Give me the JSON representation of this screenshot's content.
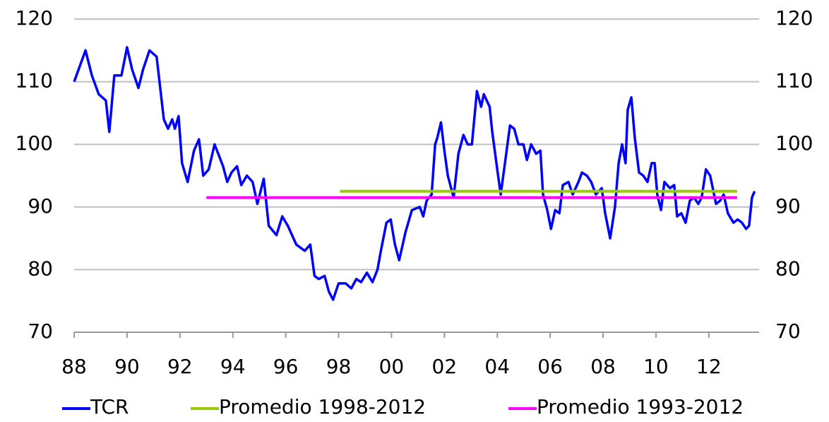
{
  "chart_data": {
    "type": "line",
    "xlim": [
      1988,
      2013.9
    ],
    "xticks": [
      {
        "value": 1988,
        "label": "88"
      },
      {
        "value": 1990,
        "label": "90"
      },
      {
        "value": 1992,
        "label": "92"
      },
      {
        "value": 1994,
        "label": "94"
      },
      {
        "value": 1996,
        "label": "96"
      },
      {
        "value": 1998,
        "label": "98"
      },
      {
        "value": 2000,
        "label": "00"
      },
      {
        "value": 2002,
        "label": "02"
      },
      {
        "value": 2004,
        "label": "04"
      },
      {
        "value": 2006,
        "label": "06"
      },
      {
        "value": 2008,
        "label": "08"
      },
      {
        "value": 2010,
        "label": "10"
      },
      {
        "value": 2012,
        "label": "12"
      }
    ],
    "ylim": [
      70,
      120
    ],
    "yticks": [
      70,
      80,
      90,
      100,
      110,
      120
    ],
    "y2lim": [
      70,
      120
    ],
    "y2ticks": [
      70,
      80,
      90,
      100,
      110,
      120
    ],
    "grid": true,
    "legend": "bottom",
    "series": [
      {
        "name": "TCR",
        "color": "#0000ff",
        "x": [
          1988,
          1988.43,
          1988.67,
          1988.93,
          1989.2,
          1989.33,
          1989.52,
          1989.79,
          1990,
          1990.19,
          1990.43,
          1990.61,
          1990.85,
          1991.12,
          1991.39,
          1991.55,
          1991.71,
          1991.81,
          1991.95,
          1992.08,
          1992.29,
          1992.53,
          1992.72,
          1992.88,
          1993.09,
          1993.31,
          1993.63,
          1993.79,
          1993.95,
          1994.16,
          1994.32,
          1994.53,
          1994.75,
          1994.93,
          1995.17,
          1995.36,
          1995.65,
          1995.87,
          1996.08,
          1996.4,
          1996.72,
          1996.93,
          1997.09,
          1997.25,
          1997.47,
          1997.63,
          1997.79,
          1998,
          1998.27,
          1998.48,
          1998.67,
          1998.85,
          1999.07,
          1999.28,
          1999.47,
          1999.6,
          1999.81,
          1999.97,
          2000.13,
          2000.29,
          2000.53,
          2000.77,
          2001.07,
          2001.2,
          2001.33,
          2001.52,
          2001.65,
          2001.73,
          2001.87,
          2002,
          2002.13,
          2002.35,
          2002.53,
          2002.72,
          2002.88,
          2003.04,
          2003.23,
          2003.39,
          2003.49,
          2003.71,
          2003.81,
          2004,
          2004.13,
          2004.29,
          2004.48,
          2004.64,
          2004.8,
          2004.99,
          2005.12,
          2005.28,
          2005.47,
          2005.63,
          2005.73,
          2005.89,
          2006.03,
          2006.19,
          2006.35,
          2006.48,
          2006.69,
          2006.85,
          2007.07,
          2007.2,
          2007.39,
          2007.55,
          2007.73,
          2007.95,
          2008.08,
          2008.27,
          2008.45,
          2008.59,
          2008.72,
          2008.85,
          2008.93,
          2009.07,
          2009.2,
          2009.36,
          2009.52,
          2009.68,
          2009.84,
          2009.95,
          2010.05,
          2010.19,
          2010.32,
          2010.53,
          2010.69,
          2010.8,
          2010.96,
          2011.12,
          2011.28,
          2011.44,
          2011.6,
          2011.73,
          2011.89,
          2012.05,
          2012.27,
          2012.43,
          2012.56,
          2012.72,
          2012.93,
          2013.09,
          2013.25,
          2013.41,
          2013.52,
          2013.63,
          2013.73
        ],
        "values": [
          110,
          115,
          111,
          108,
          107,
          102,
          111,
          111,
          115.5,
          112,
          109,
          112,
          115,
          114,
          104,
          102.5,
          104,
          102.5,
          104.5,
          97,
          94,
          99,
          100.8,
          95,
          96,
          100,
          96.5,
          94,
          95.5,
          96.5,
          93.5,
          95,
          94,
          90.5,
          94.5,
          87,
          85.5,
          88.5,
          87,
          84,
          83,
          84,
          79,
          78.5,
          79,
          76.5,
          75.2,
          77.8,
          77.8,
          77,
          78.5,
          78,
          79.5,
          78,
          80,
          83,
          87.5,
          88,
          84,
          81.5,
          86,
          89.5,
          90,
          88.5,
          91,
          92,
          100,
          101,
          103.5,
          99,
          95,
          91.5,
          98.5,
          101.5,
          100,
          100,
          108.5,
          106,
          108,
          106,
          102,
          96,
          92,
          97,
          103,
          102.5,
          100,
          100,
          97.5,
          100,
          98.5,
          99,
          92,
          89.5,
          86.5,
          89.5,
          89,
          93.5,
          94,
          92,
          94,
          95.5,
          95,
          94,
          92,
          93,
          89,
          85,
          90,
          97,
          100,
          97,
          105.5,
          107.5,
          101,
          95.5,
          95,
          94,
          97,
          97,
          92,
          89.5,
          94,
          93,
          93.5,
          88.5,
          89,
          87.5,
          91,
          91.5,
          90.5,
          91.5,
          96,
          95,
          90.5,
          91,
          92,
          89,
          87.5,
          88,
          87.5,
          86.5,
          87,
          91.5,
          92.5
        ]
      },
      {
        "name": "Promedio 1998-2012",
        "color": "#99cc00",
        "x": [
          1998.05,
          2013.07
        ],
        "values": [
          92.5,
          92.5
        ]
      },
      {
        "name": "Promedio 1993-2012",
        "color": "#ff00ff",
        "x": [
          1993,
          2013.07
        ],
        "values": [
          91.5,
          91.5
        ]
      }
    ]
  }
}
